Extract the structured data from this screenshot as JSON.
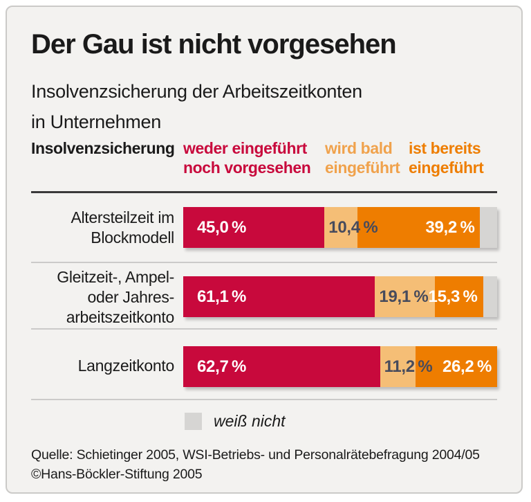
{
  "header": {
    "title": "Der Gau ist nicht vorgesehen",
    "subtitle": "Insolvenzsicherung der Arbeitszeitkonten\nin Unternehmen"
  },
  "legend_columns": {
    "category": "Insolvenzsicherung",
    "col1": "weder eingeführt\nnoch vorgesehen",
    "col2": "wird bald\neingeführt",
    "col3": "ist bereits\neingeführt"
  },
  "rows": [
    {
      "label": "Altersteilzeit im\nBlockmodell",
      "values": [
        45.0,
        10.4,
        39.2
      ],
      "value_labels": [
        "45,0 %",
        "10,4 %",
        "39,2 %"
      ]
    },
    {
      "label": "Gleitzeit-, Ampel-\noder Jahres-\narbeitszeitkonto",
      "values": [
        61.1,
        19.1,
        15.3
      ],
      "value_labels": [
        "61,1 %",
        "19,1 %",
        "15,3 %"
      ]
    },
    {
      "label": "Langzeitkonto",
      "values": [
        62.7,
        11.2,
        26.2
      ],
      "value_labels": [
        "62,7 %",
        "11,2 %",
        "26,2 %"
      ]
    }
  ],
  "footer_legend": {
    "label": "weiß nicht"
  },
  "source": {
    "line1": "Quelle: Schietinger 2005, WSI-Betriebs- und Personalrätebefragung 2004/05",
    "line2": "©Hans-Böckler-Stiftung 2005"
  },
  "colors": {
    "not_introduced_red": "#C8093C",
    "soon_amber_fill": "#F5BE76",
    "soon_amber_text": "#F0A24C",
    "introduced_orange": "#EE7D00",
    "dont_know_gray": "#D6D5D3",
    "value_label_light": "#FFFFFF",
    "value_label_dark": "#474B5C",
    "rule_dark": "#3A3A3A",
    "rule_light": "#CBCAC9",
    "panel_bg": "#F3F2F0",
    "panel_border": "#CBCAC8",
    "text": "#1A1A1A"
  },
  "chart_data": {
    "type": "bar",
    "orientation": "horizontal",
    "stacked": true,
    "title": "Der Gau ist nicht vorgesehen",
    "subtitle": "Insolvenzsicherung der Arbeitszeitkonten in Unternehmen",
    "unit": "percent",
    "xlim": [
      0,
      100
    ],
    "grid": false,
    "legend_position": "top-columns",
    "categories": [
      "Altersteilzeit im Blockmodell",
      "Gleitzeit-, Ampel- oder Jahresarbeitszeitkonto",
      "Langzeitkonto"
    ],
    "series": [
      {
        "name": "weder eingeführt noch vorgesehen",
        "color": "#C8093C",
        "values": [
          45.0,
          61.1,
          62.7
        ]
      },
      {
        "name": "wird bald eingeführt",
        "color": "#F5BE76",
        "values": [
          10.4,
          19.1,
          11.2
        ]
      },
      {
        "name": "ist bereits eingeführt",
        "color": "#EE7D00",
        "values": [
          39.2,
          15.3,
          26.2
        ]
      },
      {
        "name": "weiß nicht",
        "color": "#D6D5D3",
        "values": [
          5.4,
          4.5,
          0.0
        ]
      }
    ],
    "annotations": [
      "Quelle: Schietinger 2005, WSI-Betriebs- und Personalrätebefragung 2004/05",
      "©Hans-Böckler-Stiftung 2005"
    ]
  }
}
